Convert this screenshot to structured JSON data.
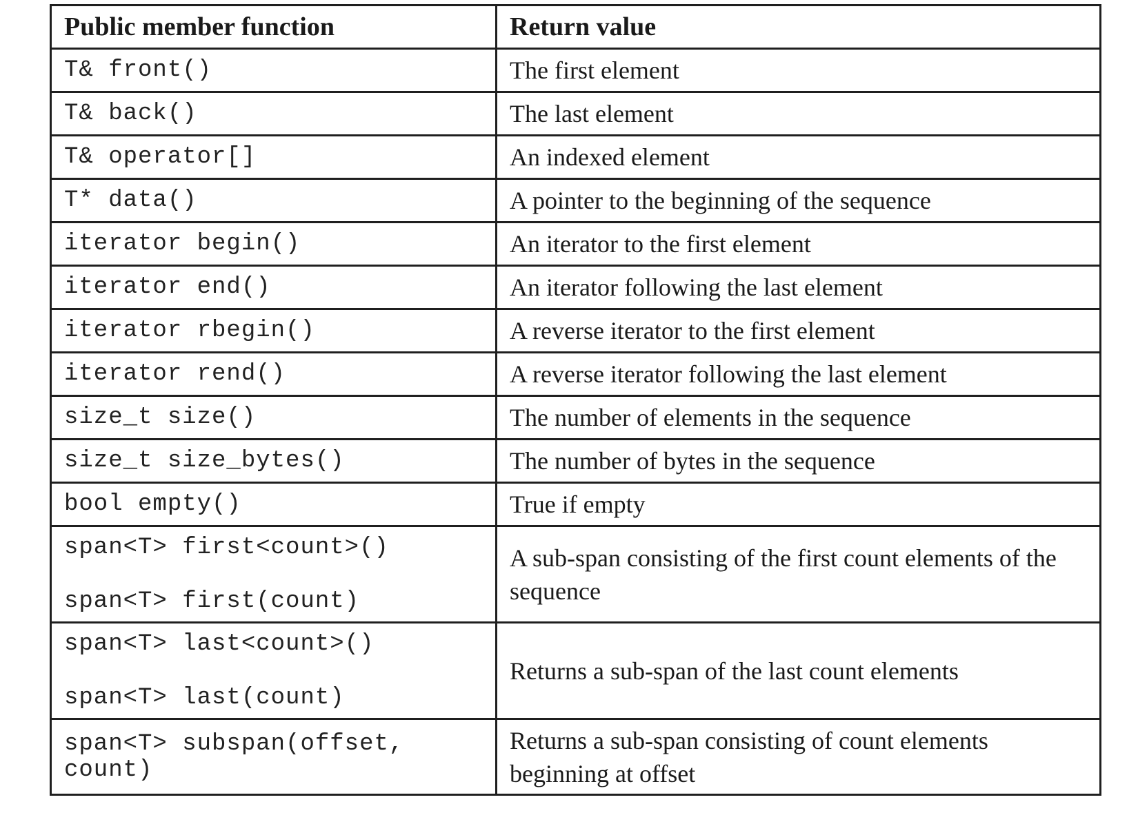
{
  "table": {
    "headers": {
      "function": "Public member function",
      "return": "Return value"
    },
    "rows": [
      {
        "fn": [
          "T& front()"
        ],
        "ret": "The first element"
      },
      {
        "fn": [
          "T& back()"
        ],
        "ret": "The last element"
      },
      {
        "fn": [
          "T& operator[]"
        ],
        "ret": "An indexed element"
      },
      {
        "fn": [
          "T* data()"
        ],
        "ret": "A pointer to the beginning of the sequence"
      },
      {
        "fn": [
          "iterator begin()"
        ],
        "ret": "An iterator to the first element"
      },
      {
        "fn": [
          "iterator end()"
        ],
        "ret": "An iterator following the last element"
      },
      {
        "fn": [
          "iterator rbegin()"
        ],
        "ret": "A reverse iterator to the first element"
      },
      {
        "fn": [
          "iterator rend()"
        ],
        "ret": "A reverse iterator following the last element"
      },
      {
        "fn": [
          "size_t size()"
        ],
        "ret": "The number of elements in the sequence"
      },
      {
        "fn": [
          "size_t size_bytes()"
        ],
        "ret": "The number of bytes in the sequence"
      },
      {
        "fn": [
          "bool empty()"
        ],
        "ret": "True if empty"
      },
      {
        "fn": [
          "span<T> first<count>()",
          "span<T> first(count)"
        ],
        "ret": "A sub-span consisting of the first count elements of the sequence"
      },
      {
        "fn": [
          "span<T> last<count>()",
          "span<T> last(count)"
        ],
        "ret": "Returns a sub-span of the last count elements"
      },
      {
        "fn": [
          "span<T> subspan(offset,",
          "count)"
        ],
        "ret": "Returns a sub-span consisting of count elements beginning at offset"
      }
    ]
  }
}
